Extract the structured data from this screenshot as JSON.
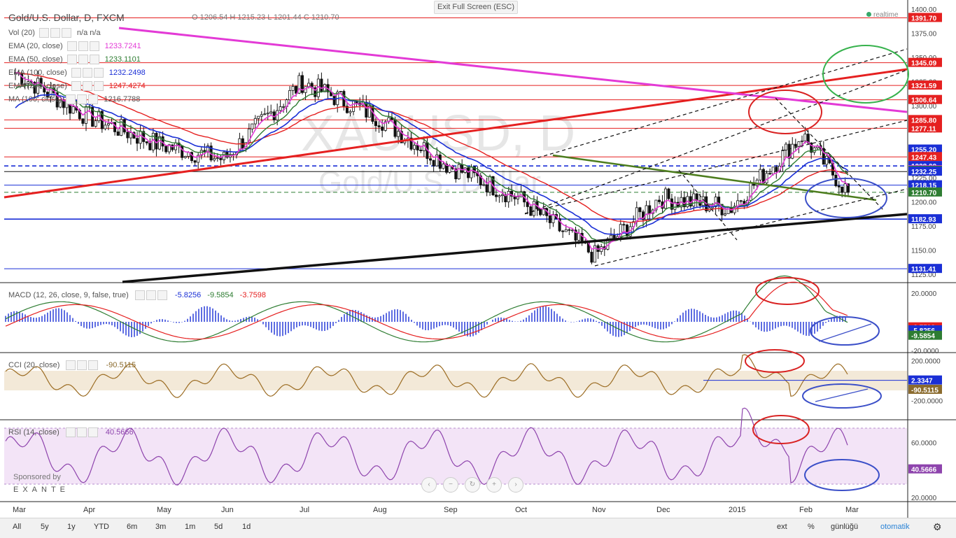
{
  "header": {
    "symbol": "Gold/U.S. Dollar, D, FXCM",
    "ohlc": "O 1206.54  H 1215.23  L 1201.44  C 1210.70",
    "exit_full_screen": "Exit Full Screen (ESC)",
    "realtime": "realtime"
  },
  "legend": [
    {
      "label": "Vol (20)",
      "value": "n/a  n/a",
      "color": "#555555"
    },
    {
      "label": "EMA (20, close)",
      "value": "1233.7241",
      "color": "#e33ad6"
    },
    {
      "label": "EMA (50, close)",
      "value": "1233.1101",
      "color": "#2e7d32"
    },
    {
      "label": "EMA (100, close)",
      "value": "1232.2498",
      "color": "#1a2fd6"
    },
    {
      "label": "EMA (200, close)",
      "value": "1247.4274",
      "color": "#e52020"
    },
    {
      "label": "MA (100, close)",
      "value": "1216.7788",
      "color": "#555555"
    }
  ],
  "watermark": {
    "symbol": "XAUUSD, D",
    "name": "Gold/U.S. Dollar"
  },
  "price_axis": {
    "ticks": [
      "1400.00",
      "1375.00",
      "1350.00",
      "1325.00",
      "1300.00",
      "1275.00",
      "1250.00",
      "1225.00",
      "1200.00",
      "1175.00",
      "1150.00",
      "1125.00"
    ],
    "labels": [
      {
        "text": "1391.70",
        "color": "#e52020"
      },
      {
        "text": "1345.09",
        "color": "#e52020"
      },
      {
        "text": "1321.59",
        "color": "#e52020"
      },
      {
        "text": "1306.64",
        "color": "#e52020"
      },
      {
        "text": "1285.80",
        "color": "#e52020"
      },
      {
        "text": "1277.11",
        "color": "#e52020"
      },
      {
        "text": "1255.20",
        "color": "#1a2fd6"
      },
      {
        "text": "1247.43",
        "color": "#e52020"
      },
      {
        "text": "1238.09",
        "color": "#1a2fd6"
      },
      {
        "text": "1233.72",
        "color": "#e33ad6"
      },
      {
        "text": "1233.11",
        "color": "#2e7d32"
      },
      {
        "text": "1232.25",
        "color": "#1a2fd6"
      },
      {
        "text": "1218.15",
        "color": "#1a2fd6"
      },
      {
        "text": "1210.70",
        "color": "#2e7d32"
      },
      {
        "text": "1182.93",
        "color": "#1a2fd6"
      },
      {
        "text": "1131.41",
        "color": "#1a2fd6"
      }
    ]
  },
  "macd": {
    "label": "MACD (12, 26, close, 9, false, true)",
    "values": [
      "-5.8256",
      "-9.5854",
      "-3.7598"
    ],
    "ticks": [
      "20.0000",
      "-20.0000"
    ],
    "axis_labels": [
      {
        "text": "-3.7598",
        "color": "#e52020"
      },
      {
        "text": "-5.8256",
        "color": "#1a2fd6"
      },
      {
        "text": "-9.5854",
        "color": "#2e7d32"
      }
    ]
  },
  "cci": {
    "label": "CCI (20, close)",
    "value": "-90.5115",
    "ticks": [
      "200.0000",
      "-200.0000"
    ],
    "axis_labels": [
      {
        "text": "2.3347",
        "color": "#1a2fd6"
      },
      {
        "text": "-90.5115",
        "color": "#8b6b2e"
      }
    ]
  },
  "rsi": {
    "label": "RSI (14, close)",
    "value": "40.5666",
    "ticks": [
      "60.0000",
      "20.0000"
    ],
    "axis_labels": [
      {
        "text": "40.5666",
        "color": "#8e44ad"
      }
    ]
  },
  "sponsor": {
    "line1": "Sponsored by",
    "line2": "EXANTE"
  },
  "time_axis": [
    "Mar",
    "Apr",
    "May",
    "Jun",
    "Jul",
    "Aug",
    "Sep",
    "Oct",
    "Nov",
    "Dec",
    "2015",
    "Feb",
    "Mar"
  ],
  "bottom_bar": {
    "ranges": [
      "All",
      "5y",
      "1y",
      "YTD",
      "6m",
      "3m",
      "1m",
      "5d",
      "1d"
    ],
    "right": [
      "ext",
      "%",
      "günlüğü",
      "otomatik"
    ]
  },
  "chart_data": {
    "type": "line",
    "title": "Gold/U.S. Dollar, D, FXCM",
    "ylim": [
      1120,
      1405
    ],
    "last_close": 1210.7,
    "levels": [
      1391.7,
      1345.09,
      1321.59,
      1306.64,
      1285.8,
      1277.11,
      1247.43,
      1238.09,
      1232.25,
      1218.15,
      1210.7,
      1182.93,
      1131.41
    ],
    "close_series_monthly": [
      {
        "x": "Mar",
        "y": 1335
      },
      {
        "x": "Apr",
        "y": 1290
      },
      {
        "x": "May",
        "y": 1260
      },
      {
        "x": "Jun",
        "y": 1245
      },
      {
        "x": "Jul",
        "y": 1325
      },
      {
        "x": "Aug",
        "y": 1290
      },
      {
        "x": "Sep",
        "y": 1240
      },
      {
        "x": "Oct",
        "y": 1205
      },
      {
        "x": "Nov",
        "y": 1145
      },
      {
        "x": "Dec",
        "y": 1205
      },
      {
        "x": "2015",
        "y": 1195
      },
      {
        "x": "Feb",
        "y": 1270
      },
      {
        "x": "Mar",
        "y": 1210.7
      }
    ],
    "indicators": {
      "macd": [
        -5.8256,
        -9.5854,
        -3.7598
      ],
      "cci": -90.5115,
      "rsi": 40.5666
    }
  }
}
